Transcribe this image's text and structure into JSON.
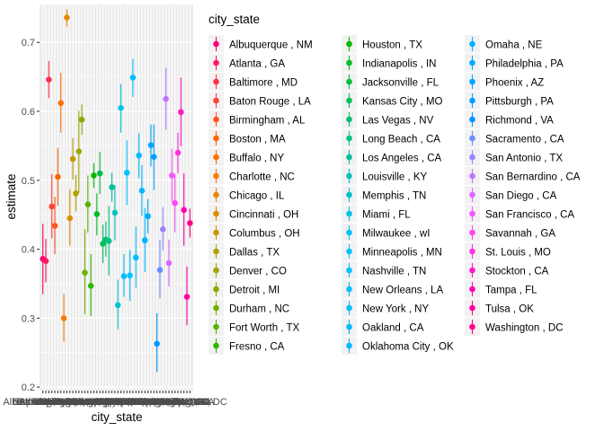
{
  "chart_data": {
    "type": "scatter",
    "title": "",
    "xlabel": "city_state",
    "ylabel": "estimate",
    "ylim": [
      0.195,
      0.755
    ],
    "yticks": [
      0.2,
      0.3,
      0.4,
      0.5,
      0.6,
      0.7
    ],
    "grid": true,
    "legend": {
      "title": "city_state",
      "placement": "right"
    },
    "error_bars": true,
    "categories": [
      "Albuquerque , NM",
      "Atlanta , GA",
      "Baltimore , MD",
      "Baton Rouge , LA",
      "Birmingham , AL",
      "Boston , MA",
      "Buffalo , NY",
      "Charlotte , NC",
      "Chicago , IL",
      "Cincinnati , OH",
      "Columbus , OH",
      "Dallas , TX",
      "Denver , CO",
      "Detroit , MI",
      "Durham , NC",
      "Fort Worth , TX",
      "Fresno , CA",
      "Houston , TX",
      "Indianapolis , IN",
      "Jacksonville , FL",
      "Kansas City , MO",
      "Las Vegas , NV",
      "Long Beach , CA",
      "Los Angeles , CA",
      "Louisville , KY",
      "Memphis , TN",
      "Miami , FL",
      "Milwaukee , wI",
      "Minneapolis , MN",
      "Nashville , TN",
      "New Orleans , LA",
      "New York , NY",
      "Oakland , CA",
      "Oklahoma City , OK",
      "Omaha , NE",
      "Philadelphia , PA",
      "Phoenix , AZ",
      "Pittsburgh , PA",
      "Richmond , VA",
      "Sacramento , CA",
      "San Antonio , TX",
      "San Bernardino , CA",
      "San Diego , CA",
      "San Francisco , CA",
      "Savannah , GA",
      "St. Louis , MO",
      "Stockton , CA",
      "Tampa , FL",
      "Tulsa , OK",
      "Washington , DC"
    ],
    "estimate": [
      0.386,
      0.383,
      0.646,
      0.462,
      0.434,
      0.505,
      0.612,
      0.3,
      0.736,
      0.445,
      0.531,
      0.481,
      0.542,
      0.588,
      0.366,
      0.465,
      0.347,
      0.507,
      0.451,
      0.51,
      0.408,
      0.414,
      0.412,
      0.49,
      0.453,
      0.319,
      0.605,
      0.361,
      0.511,
      0.362,
      0.649,
      0.388,
      0.536,
      0.485,
      0.413,
      0.448,
      0.551,
      0.534,
      0.263,
      0.37,
      0.429,
      0.618,
      0.38,
      0.507,
      0.467,
      0.54,
      0.599,
      0.457,
      0.331,
      0.438
    ],
    "ci_low": [
      0.335,
      0.352,
      0.619,
      0.416,
      0.393,
      0.463,
      0.569,
      0.266,
      0.723,
      0.405,
      0.501,
      0.455,
      0.482,
      0.566,
      0.306,
      0.424,
      0.303,
      0.489,
      0.42,
      0.48,
      0.38,
      0.389,
      0.362,
      0.469,
      0.413,
      0.284,
      0.569,
      0.331,
      0.464,
      0.325,
      0.621,
      0.344,
      0.503,
      0.448,
      0.367,
      0.423,
      0.52,
      0.486,
      0.222,
      0.329,
      0.398,
      0.573,
      0.346,
      0.469,
      0.425,
      0.51,
      0.549,
      0.405,
      0.29,
      0.417
    ],
    "ci_high": [
      0.437,
      0.415,
      0.673,
      0.509,
      0.476,
      0.547,
      0.656,
      0.335,
      0.748,
      0.487,
      0.561,
      0.508,
      0.601,
      0.61,
      0.429,
      0.507,
      0.393,
      0.525,
      0.481,
      0.541,
      0.436,
      0.44,
      0.463,
      0.511,
      0.493,
      0.356,
      0.64,
      0.393,
      0.558,
      0.399,
      0.676,
      0.433,
      0.568,
      0.522,
      0.46,
      0.473,
      0.581,
      0.581,
      0.307,
      0.414,
      0.461,
      0.663,
      0.414,
      0.546,
      0.509,
      0.569,
      0.649,
      0.51,
      0.375,
      0.459
    ],
    "tick_labels": [
      "Albuquerque , NM",
      "Atlanta , GA",
      "Baltimore , MD",
      "Baton Rouge , LA",
      "Birmingham , AL",
      "Boston , MA",
      "Buffalo , NY",
      "Charlotte , NC",
      "Chicago , IL",
      "Cincinnati , OH",
      "Columbus , OH",
      "Dallas , TX",
      "Denver , CO",
      "Detroit , MI",
      "Durham , NC",
      "Fort Worth , TX",
      "Fresno , CA",
      "Houston , TX",
      "Indianapolis , IN",
      "Jacksonville , FL",
      "Kansas City , MO",
      "Las Vegas , NV",
      "Long Beach , CA",
      "Los Angeles , CA",
      "Louisville , KY",
      "Memphis , TN",
      "Miami , FL",
      "Milwaukee , wI",
      "Minneapolis , MN",
      "Nashville , TN",
      "New Orleans , LA",
      "New York , NY",
      "Oakland , CA",
      "Oklahoma City , OK",
      "Omaha , NE",
      "Philadelphia , PA",
      "Phoenix , AZ",
      "Pittsburgh , PA",
      "Richmond , VA",
      "Sacramento , CA",
      "San Antonio , TX",
      "San Bernardino , CA",
      "San Diego , CA",
      "San Francisco , CA",
      "Savannah , GA",
      "St. Louis , MO",
      "Stockton , CA",
      "Tampa , FL",
      "Tulsa , OK",
      "Washington , DC"
    ]
  },
  "colors": {
    "panel_background": "#EBEBEB",
    "grid_major": "#FFFFFF",
    "palette": "ggplot2 default hue scale"
  }
}
